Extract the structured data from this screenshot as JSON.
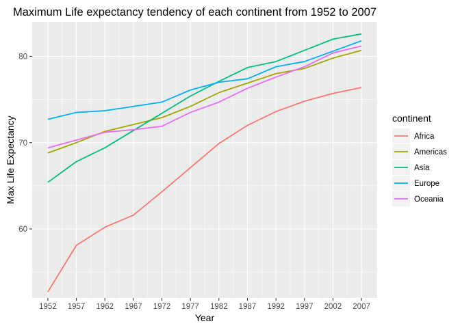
{
  "chart_data": {
    "type": "line",
    "title": "Maximum Life expectancy tendency of each continent from 1952 to 2007",
    "xlabel": "Year",
    "ylabel": "Max Life Expectancy",
    "x": [
      1952,
      1957,
      1962,
      1967,
      1972,
      1977,
      1982,
      1987,
      1992,
      1997,
      2002,
      2007
    ],
    "x_tick_labels": [
      "1952",
      "1957",
      "1962",
      "1967",
      "1972",
      "1977",
      "1982",
      "1987",
      "1992",
      "1997",
      "2002",
      "2007"
    ],
    "y_ticks": [
      60,
      70,
      80
    ],
    "y_tick_labels": [
      "60",
      "70",
      "80"
    ],
    "xlim": [
      1949.25,
      2009.75
    ],
    "ylim": [
      52.0,
      84.0
    ],
    "grid": true,
    "legend": {
      "title": "continent",
      "position": "right"
    },
    "series": [
      {
        "name": "Africa",
        "color": "#F8766D",
        "values": [
          52.7,
          58.1,
          60.2,
          61.6,
          64.3,
          67.1,
          69.9,
          72.0,
          73.6,
          74.8,
          75.7,
          76.4
        ]
      },
      {
        "name": "Americas",
        "color": "#A3A500",
        "values": [
          68.8,
          70.0,
          71.3,
          72.1,
          72.9,
          74.2,
          75.8,
          76.9,
          78.0,
          78.6,
          79.8,
          80.7
        ]
      },
      {
        "name": "Asia",
        "color": "#00BF7D",
        "values": [
          65.4,
          67.8,
          69.4,
          71.4,
          73.4,
          75.4,
          77.1,
          78.7,
          79.4,
          80.7,
          82.0,
          82.6
        ]
      },
      {
        "name": "Europe",
        "color": "#00B0F6",
        "values": [
          72.7,
          73.5,
          73.7,
          74.2,
          74.7,
          76.1,
          77.0,
          77.4,
          78.8,
          79.4,
          80.6,
          81.8
        ]
      },
      {
        "name": "Oceania",
        "color": "#E76BF3",
        "values": [
          69.4,
          70.3,
          71.2,
          71.5,
          71.9,
          73.5,
          74.7,
          76.3,
          77.6,
          78.8,
          80.4,
          81.2
        ]
      }
    ]
  },
  "style": {
    "panel_background": "#EBEBEB",
    "grid_major": "#FFFFFF",
    "axis_text": "#4D4D4D",
    "text": "#000000"
  }
}
